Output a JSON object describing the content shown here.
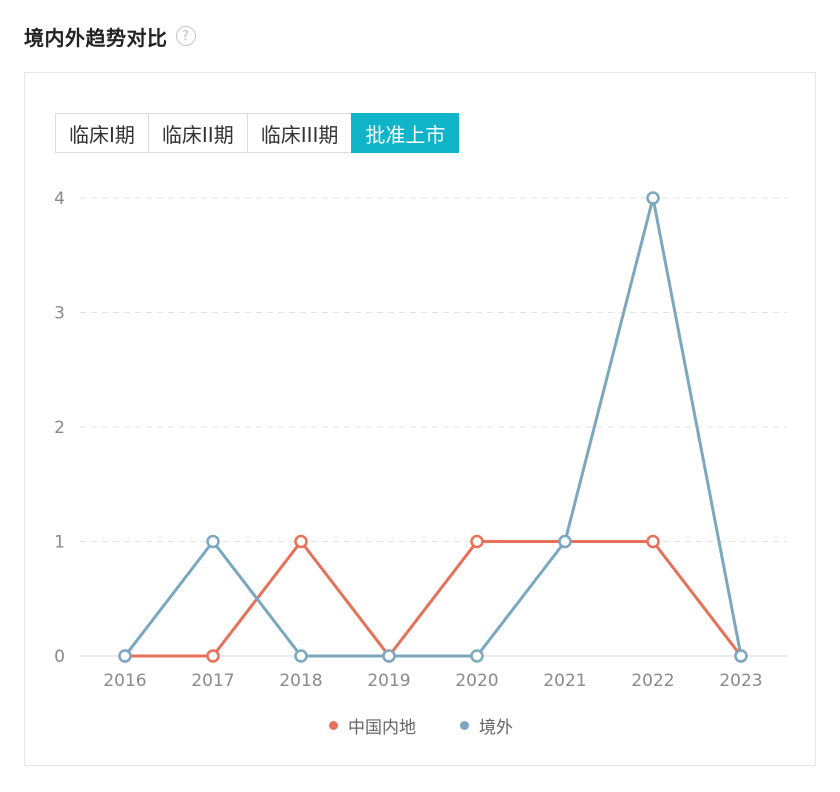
{
  "header": {
    "title": "境内外趋势对比",
    "help_glyph": "?"
  },
  "tabs": [
    {
      "label": "临床I期",
      "active": false
    },
    {
      "label": "临床II期",
      "active": false
    },
    {
      "label": "临床III期",
      "active": false
    },
    {
      "label": "批准上市",
      "active": true
    }
  ],
  "colors": {
    "accent": "#10b4c8",
    "series_domestic": "#e8705b",
    "series_overseas": "#7ba7bf"
  },
  "chart_data": {
    "type": "line",
    "x": [
      "2016",
      "2017",
      "2018",
      "2019",
      "2020",
      "2021",
      "2022",
      "2023"
    ],
    "yticks": [
      "0",
      "1",
      "2",
      "3",
      "4"
    ],
    "ylim": [
      0,
      4
    ],
    "grid": true,
    "legend_position": "bottom",
    "series": [
      {
        "name": "中国内地",
        "color": "#e8705b",
        "values": [
          0,
          0,
          1,
          0,
          1,
          1,
          1,
          0
        ]
      },
      {
        "name": "境外",
        "color": "#7ba7bf",
        "values": [
          0,
          1,
          0,
          0,
          0,
          1,
          4,
          0
        ]
      }
    ]
  }
}
